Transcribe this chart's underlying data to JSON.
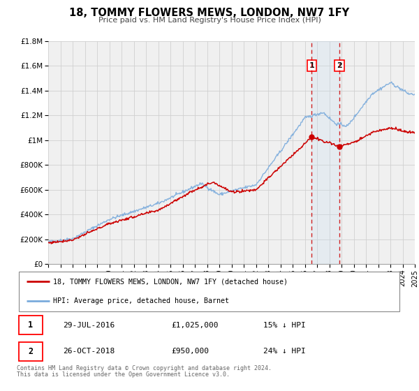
{
  "title": "18, TOMMY FLOWERS MEWS, LONDON, NW7 1FY",
  "subtitle": "Price paid vs. HM Land Registry's House Price Index (HPI)",
  "legend_property": "18, TOMMY FLOWERS MEWS, LONDON, NW7 1FY (detached house)",
  "legend_hpi": "HPI: Average price, detached house, Barnet",
  "footnote1": "Contains HM Land Registry data © Crown copyright and database right 2024.",
  "footnote2": "This data is licensed under the Open Government Licence v3.0.",
  "marker1_label": "1",
  "marker2_label": "2",
  "marker1_date": "29-JUL-2016",
  "marker1_price": "£1,025,000",
  "marker1_hpi": "15% ↓ HPI",
  "marker2_date": "26-OCT-2018",
  "marker2_price": "£950,000",
  "marker2_hpi": "24% ↓ HPI",
  "sale1_x": 2016.57,
  "sale1_y": 1025000,
  "sale2_x": 2018.82,
  "sale2_y": 950000,
  "vline1_x": 2016.57,
  "vline2_x": 2018.82,
  "property_color": "#cc0000",
  "hpi_color": "#7aabdc",
  "hpi_fill_color": "#c8ddf0",
  "background_color": "#f0f0f0",
  "grid_color": "#d0d0d0",
  "ylim_min": 0,
  "ylim_max": 1800000,
  "xlim_min": 1995,
  "xlim_max": 2025,
  "yticks": [
    0,
    200000,
    400000,
    600000,
    800000,
    1000000,
    1200000,
    1400000,
    1600000,
    1800000
  ],
  "ytick_labels": [
    "£0",
    "£200K",
    "£400K",
    "£600K",
    "£800K",
    "£1M",
    "£1.2M",
    "£1.4M",
    "£1.6M",
    "£1.8M"
  ],
  "xticks": [
    1995,
    1996,
    1997,
    1998,
    1999,
    2000,
    2001,
    2002,
    2003,
    2004,
    2005,
    2006,
    2007,
    2008,
    2009,
    2010,
    2011,
    2012,
    2013,
    2014,
    2015,
    2016,
    2017,
    2018,
    2019,
    2020,
    2021,
    2022,
    2023,
    2024,
    2025
  ]
}
